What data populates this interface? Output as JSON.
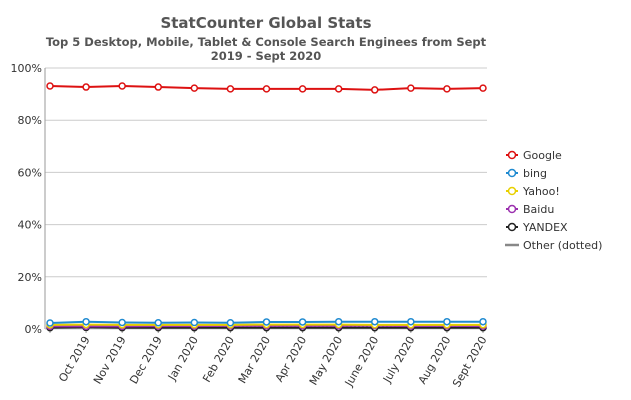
{
  "chart_data": {
    "type": "line",
    "title": "StatCounter Global Stats",
    "subtitle": [
      "Top 5 Desktop, Mobile, Tablet & Console Search Enginees from Sept",
      "2019 - Sept 2020"
    ],
    "categories": [
      null,
      "Oct 2019",
      "Nov 2019",
      "Dec 2019",
      "Jan 2020",
      "Feb 2020",
      "Mar 2020",
      "Apr 2020",
      "May 2020",
      "June 2020",
      "July 2020",
      "Aug 2020",
      "Sept 2020"
    ],
    "series": [
      {
        "name": "Google",
        "color": "#dd1111",
        "markers": true,
        "values": [
          93.1,
          92.7,
          93.1,
          92.7,
          92.3,
          92.0,
          92.0,
          92.0,
          92.0,
          91.6,
          92.3,
          92.0,
          92.3
        ]
      },
      {
        "name": "bing",
        "color": "#1f8ad0",
        "markers": true,
        "values": [
          2.3,
          2.8,
          2.5,
          2.4,
          2.5,
          2.4,
          2.7,
          2.7,
          2.8,
          2.8,
          2.8,
          2.8,
          2.8
        ]
      },
      {
        "name": "Yahoo!",
        "color": "#e8d000",
        "markers": true,
        "values": [
          1.6,
          1.7,
          1.6,
          1.6,
          1.6,
          1.6,
          1.7,
          1.7,
          1.7,
          1.6,
          1.6,
          1.6,
          1.6
        ]
      },
      {
        "name": "Baidu",
        "color": "#9b2fae",
        "markers": true,
        "values": [
          1.0,
          1.0,
          1.0,
          1.1,
          1.1,
          1.2,
          1.2,
          1.2,
          1.2,
          1.3,
          1.1,
          1.2,
          1.1
        ]
      },
      {
        "name": "YANDEX",
        "color": "#222222",
        "markers": true,
        "values": [
          0.5,
          0.6,
          0.5,
          0.5,
          0.5,
          0.5,
          0.5,
          0.5,
          0.5,
          0.5,
          0.5,
          0.5,
          0.5
        ]
      },
      {
        "name": "Other (dotted)",
        "color": "#888888",
        "markers": false,
        "values": [
          0.6,
          0.6,
          0.6,
          0.6,
          0.6,
          0.6,
          0.6,
          0.6,
          0.6,
          0.6,
          0.6,
          0.6,
          0.6
        ]
      }
    ],
    "ylim": [
      0,
      100
    ],
    "yticks": [
      {
        "value": 0,
        "label": "0%"
      },
      {
        "value": 20,
        "label": "20%"
      },
      {
        "value": 40,
        "label": "40%"
      },
      {
        "value": 60,
        "label": "60%"
      },
      {
        "value": 80,
        "label": "80%"
      },
      {
        "value": 100,
        "label": "100%"
      }
    ],
    "grid": true,
    "legend": "right"
  }
}
